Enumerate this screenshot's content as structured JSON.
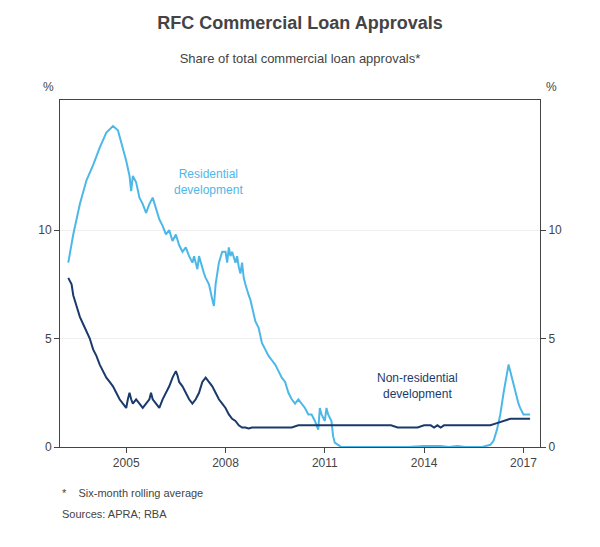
{
  "chart_data": {
    "type": "line",
    "title": "RFC Commercial Loan Approvals",
    "subtitle": "Share of total commercial loan approvals*",
    "footnote": "*    Six-month rolling average",
    "source": "Sources: APRA; RBA",
    "ylabel": "%",
    "y2label": "%",
    "xlim": [
      2003.0,
      2017.5
    ],
    "xticks": [
      2005,
      2008,
      2011,
      2014,
      2017
    ],
    "ylim": [
      0,
      16
    ],
    "yticks": [
      0,
      5,
      10
    ],
    "y2lim": [
      0,
      16
    ],
    "y2ticks": [
      0,
      5,
      10
    ],
    "grid": "y",
    "series": [
      {
        "name": "Residential\ndevelopment",
        "color": "#4db8e8",
        "x": [
          2003.25,
          2003.4,
          2003.6,
          2003.8,
          2004.0,
          2004.2,
          2004.4,
          2004.6,
          2004.75,
          2004.9,
          2005.0,
          2005.1,
          2005.15,
          2005.2,
          2005.3,
          2005.4,
          2005.5,
          2005.6,
          2005.7,
          2005.8,
          2005.9,
          2006.0,
          2006.1,
          2006.2,
          2006.3,
          2006.4,
          2006.5,
          2006.6,
          2006.7,
          2006.8,
          2006.9,
          2007.0,
          2007.05,
          2007.1,
          2007.15,
          2007.2,
          2007.25,
          2007.3,
          2007.35,
          2007.4,
          2007.5,
          2007.6,
          2007.65,
          2007.7,
          2007.75,
          2007.8,
          2007.9,
          2008.0,
          2008.05,
          2008.1,
          2008.15,
          2008.2,
          2008.3,
          2008.35,
          2008.4,
          2008.45,
          2008.5,
          2008.55,
          2008.6,
          2008.65,
          2008.7,
          2008.75,
          2008.8,
          2008.9,
          2009.0,
          2009.1,
          2009.2,
          2009.3,
          2009.4,
          2009.5,
          2009.6,
          2009.7,
          2009.8,
          2009.9,
          2010.0,
          2010.1,
          2010.2,
          2010.3,
          2010.4,
          2010.5,
          2010.6,
          2010.7,
          2010.8,
          2010.85,
          2010.9,
          2011.0,
          2011.05,
          2011.1,
          2011.2,
          2011.25,
          2011.3,
          2011.4,
          2011.5,
          2011.75,
          2012.0,
          2012.5,
          2013.0,
          2013.5,
          2014.0,
          2014.25,
          2014.5,
          2014.75,
          2015.0,
          2015.25,
          2015.5,
          2015.75,
          2016.0,
          2016.1,
          2016.2,
          2016.3,
          2016.4,
          2016.5,
          2016.55,
          2016.6,
          2016.65,
          2016.7,
          2016.75,
          2016.8,
          2016.85,
          2016.9,
          2017.0,
          2017.1,
          2017.2
        ],
        "values": [
          8.5,
          9.8,
          11.2,
          12.3,
          13.0,
          13.8,
          14.5,
          14.8,
          14.6,
          13.8,
          13.2,
          12.5,
          11.8,
          12.5,
          12.2,
          11.5,
          11.2,
          10.8,
          11.2,
          11.5,
          11.0,
          10.5,
          10.2,
          9.8,
          10.0,
          9.5,
          9.8,
          9.3,
          9.0,
          9.2,
          8.8,
          8.5,
          8.8,
          8.5,
          8.2,
          8.8,
          8.5,
          8.2,
          8.0,
          7.8,
          7.5,
          6.8,
          6.5,
          7.5,
          8.0,
          8.5,
          9.0,
          9.0,
          8.5,
          9.2,
          8.8,
          9.0,
          8.5,
          8.8,
          8.3,
          8.0,
          8.5,
          7.8,
          7.5,
          7.2,
          7.0,
          6.8,
          6.5,
          5.8,
          5.5,
          4.8,
          4.5,
          4.2,
          4.0,
          3.8,
          3.5,
          3.2,
          3.0,
          2.5,
          2.2,
          2.0,
          2.2,
          2.0,
          1.8,
          1.5,
          1.5,
          1.2,
          0.8,
          1.8,
          1.5,
          1.2,
          1.8,
          1.5,
          1.2,
          0.5,
          0.2,
          0.1,
          0.0,
          0.0,
          0.0,
          0.0,
          0.0,
          0.0,
          0.05,
          0.05,
          0.05,
          0.0,
          0.05,
          0.0,
          0.0,
          0.0,
          0.1,
          0.3,
          0.8,
          1.5,
          2.5,
          3.5,
          3.8,
          3.5,
          3.2,
          2.8,
          2.5,
          2.2,
          2.0,
          1.8,
          1.5,
          1.5,
          1.5
        ]
      },
      {
        "name": "Non-residential\ndevelopment",
        "color": "#1a3a6b",
        "x": [
          2003.25,
          2003.35,
          2003.4,
          2003.5,
          2003.6,
          2003.75,
          2003.9,
          2004.0,
          2004.1,
          2004.2,
          2004.3,
          2004.4,
          2004.5,
          2004.6,
          2004.7,
          2004.8,
          2004.9,
          2005.0,
          2005.05,
          2005.1,
          2005.15,
          2005.2,
          2005.3,
          2005.4,
          2005.5,
          2005.6,
          2005.7,
          2005.75,
          2005.8,
          2005.9,
          2006.0,
          2006.1,
          2006.2,
          2006.3,
          2006.4,
          2006.5,
          2006.55,
          2006.6,
          2006.7,
          2006.8,
          2006.9,
          2007.0,
          2007.1,
          2007.2,
          2007.25,
          2007.3,
          2007.4,
          2007.5,
          2007.6,
          2007.7,
          2007.8,
          2007.9,
          2008.0,
          2008.1,
          2008.2,
          2008.3,
          2008.4,
          2008.5,
          2008.6,
          2008.7,
          2008.8,
          2008.9,
          2009.0,
          2009.2,
          2009.4,
          2009.6,
          2009.8,
          2010.0,
          2010.2,
          2010.4,
          2010.6,
          2010.8,
          2011.0,
          2011.2,
          2011.4,
          2011.6,
          2011.8,
          2012.0,
          2012.2,
          2012.4,
          2012.6,
          2012.8,
          2013.0,
          2013.2,
          2013.4,
          2013.6,
          2013.8,
          2014.0,
          2014.2,
          2014.3,
          2014.4,
          2014.5,
          2014.6,
          2014.8,
          2015.0,
          2015.2,
          2015.4,
          2015.6,
          2015.8,
          2016.0,
          2016.2,
          2016.4,
          2016.6,
          2016.8,
          2017.0,
          2017.2
        ],
        "values": [
          7.8,
          7.5,
          7.0,
          6.5,
          6.0,
          5.5,
          5.0,
          4.5,
          4.2,
          3.8,
          3.5,
          3.2,
          3.0,
          2.8,
          2.5,
          2.2,
          2.0,
          1.8,
          2.2,
          2.5,
          2.2,
          2.0,
          2.2,
          2.0,
          1.8,
          2.0,
          2.2,
          2.5,
          2.2,
          2.0,
          1.8,
          2.2,
          2.5,
          2.8,
          3.2,
          3.5,
          3.3,
          3.0,
          2.8,
          2.5,
          2.2,
          2.0,
          2.2,
          2.5,
          2.8,
          3.0,
          3.2,
          3.0,
          2.8,
          2.5,
          2.2,
          2.0,
          1.8,
          1.5,
          1.3,
          1.2,
          1.0,
          0.9,
          0.9,
          0.85,
          0.9,
          0.9,
          0.9,
          0.9,
          0.9,
          0.9,
          0.9,
          0.9,
          1.0,
          1.0,
          1.0,
          1.0,
          1.0,
          1.0,
          1.0,
          1.0,
          1.0,
          1.0,
          1.0,
          1.0,
          1.0,
          1.0,
          1.0,
          0.9,
          0.9,
          0.9,
          0.9,
          1.0,
          1.0,
          0.9,
          1.0,
          0.9,
          1.0,
          1.0,
          1.0,
          1.0,
          1.0,
          1.0,
          1.0,
          1.0,
          1.1,
          1.2,
          1.3,
          1.3,
          1.3,
          1.3
        ]
      }
    ],
    "annotations": [
      {
        "text": "Residential\ndevelopment",
        "x": 2007.5,
        "y": 12.2,
        "color": "#4db8e8"
      },
      {
        "text": "Non-residential\ndevelopment",
        "x": 2013.8,
        "y": 2.8,
        "color": "#1a3a6b"
      }
    ]
  }
}
